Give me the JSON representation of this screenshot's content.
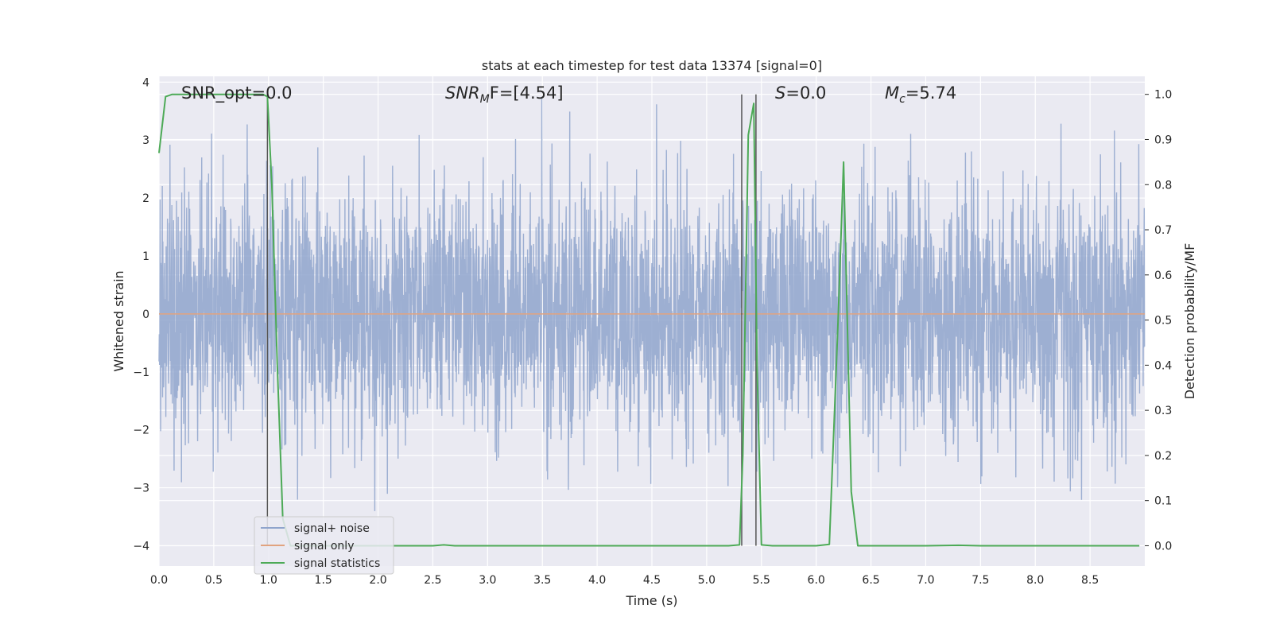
{
  "chart_data": {
    "type": "line",
    "title": "stats at each timestep for test data 13374 [signal=0]",
    "xlabel": "Time (s)",
    "ylabel": "Whitened strain",
    "y2label": "Detection probability/MF",
    "xlim": [
      0.0,
      9.0
    ],
    "ylim": [
      -4.35,
      4.1
    ],
    "y2lim": [
      -0.045,
      1.04
    ],
    "xticks": [
      0.0,
      0.5,
      1.0,
      1.5,
      2.0,
      2.5,
      3.0,
      3.5,
      4.0,
      4.5,
      5.0,
      5.5,
      6.0,
      6.5,
      7.0,
      7.5,
      8.0,
      8.5
    ],
    "yticks": [
      -4,
      -3,
      -2,
      -1,
      0,
      1,
      2,
      3,
      4
    ],
    "y2ticks": [
      0.0,
      0.1,
      0.2,
      0.3,
      0.4,
      0.5,
      0.6,
      0.7,
      0.8,
      0.9,
      1.0
    ],
    "xtick_labels": [
      "0.0",
      "0.5",
      "1.0",
      "1.5",
      "2.0",
      "2.5",
      "3.0",
      "3.5",
      "4.0",
      "4.5",
      "5.0",
      "5.5",
      "6.0",
      "6.5",
      "7.0",
      "7.5",
      "8.0",
      "8.5"
    ],
    "ytick_labels": [
      "−4",
      "−3",
      "−2",
      "−1",
      "0",
      "1",
      "2",
      "3",
      "4"
    ],
    "y2tick_labels": [
      "0.0",
      "0.1",
      "0.2",
      "0.3",
      "0.4",
      "0.5",
      "0.6",
      "0.7",
      "0.8",
      "0.9",
      "1.0"
    ],
    "grid": true,
    "legend_position": "lower-left",
    "annotations": {
      "snr_opt": "SNR_opt=0.0",
      "snr_mf_main": "SNR",
      "snr_mf_sub": "M",
      "snr_mf_rest": "F=[4.54]",
      "s_main": "S",
      "s_rest": "=0.0",
      "mc_main": "M",
      "mc_sub": "c",
      "mc_rest": "=5.74"
    },
    "vertical_lines_x": [
      0.99,
      5.32,
      5.45
    ],
    "vertical_lines_range": [
      0.0,
      1.0
    ],
    "series": [
      {
        "name": "signal+ noise",
        "color": "#8fa4cc",
        "kind": "noise",
        "sample_rate": 400,
        "std": 1.05,
        "range": [
          -3.6,
          3.75
        ],
        "seed": 13374
      },
      {
        "name": "signal only",
        "color": "#e1a37f",
        "kind": "flat",
        "value": 0.0
      },
      {
        "name": "signal statistics",
        "color": "#4daa57",
        "kind": "probability",
        "x": [
          0.0,
          0.06,
          0.12,
          0.3,
          0.5,
          0.7,
          0.9,
          0.95,
          0.99,
          1.03,
          1.08,
          1.13,
          1.2,
          1.3,
          1.5,
          2.0,
          2.5,
          2.6,
          2.7,
          3.0,
          4.0,
          5.0,
          5.2,
          5.3,
          5.33,
          5.38,
          5.43,
          5.46,
          5.5,
          5.6,
          6.0,
          6.12,
          6.2,
          6.25,
          6.32,
          6.38,
          6.5,
          7.0,
          7.3,
          7.5,
          8.0,
          8.5,
          8.95
        ],
        "y": [
          0.87,
          0.995,
          1.0,
          1.0,
          1.0,
          1.0,
          1.0,
          1.0,
          0.995,
          0.8,
          0.4,
          0.06,
          0.0,
          0.0,
          0.0,
          0.0,
          0.0,
          0.002,
          0.0,
          0.0,
          0.0,
          0.0,
          0.0,
          0.002,
          0.2,
          0.91,
          0.98,
          0.4,
          0.002,
          0.0,
          0.0,
          0.003,
          0.5,
          0.85,
          0.12,
          0.0,
          0.0,
          0.0,
          0.001,
          0.0,
          0.0,
          0.0,
          0.0
        ]
      }
    ]
  }
}
